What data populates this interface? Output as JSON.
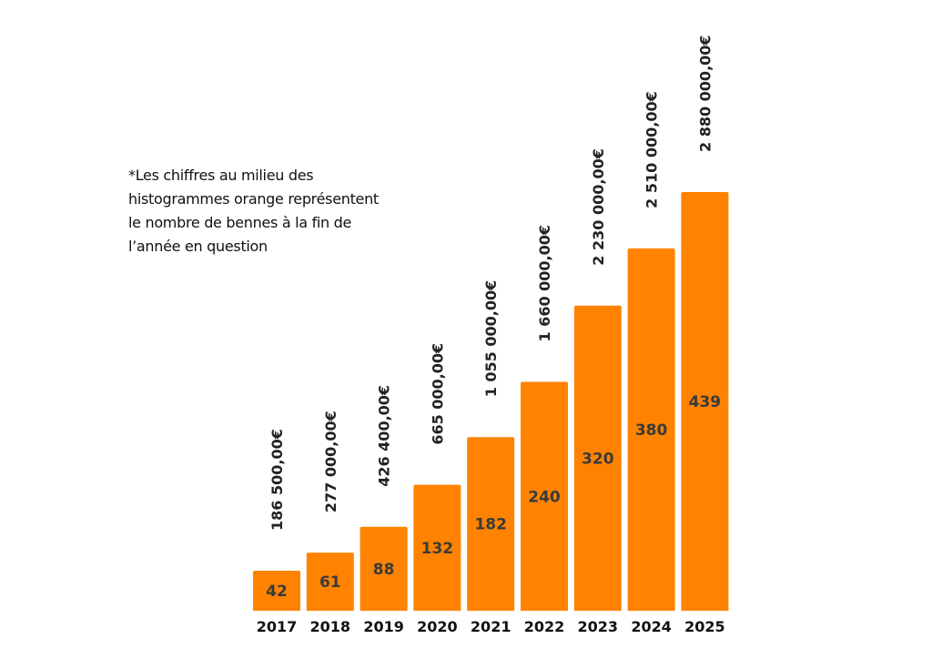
{
  "note": {
    "lines": [
      "*Les chiffres au milieu des",
      "histogrammes orange représentent",
      "le nombre de bennes à la fin de",
      "l’année en question"
    ]
  },
  "colors": {
    "bar": "#FF8300",
    "text": "#111111",
    "bar_text": "#3a3a3a"
  },
  "chart_data": {
    "type": "bar",
    "categories": [
      "2017",
      "2018",
      "2019",
      "2020",
      "2021",
      "2022",
      "2023",
      "2024",
      "2025"
    ],
    "values": [
      42,
      61,
      88,
      132,
      182,
      240,
      320,
      380,
      439
    ],
    "amounts": [
      "186 500,00€",
      "277 000,00€",
      "426 400,00€",
      "665 000,00€",
      "1 055 000,00€",
      "1 660 000,00€",
      "2 230 000,00€",
      "2 510 000,00€",
      "2 880 000,00€"
    ],
    "title": "",
    "xlabel": "",
    "ylabel": "",
    "grid": false,
    "legend": "none"
  }
}
